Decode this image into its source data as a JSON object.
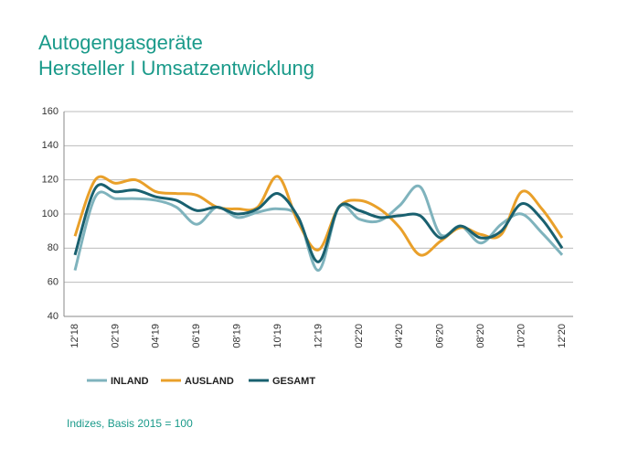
{
  "chart_data": {
    "type": "line",
    "title": "Autogengasgeräte",
    "subtitle": "Hersteller I Umsatzentwicklung",
    "note": "Indizes, Basis 2015 = 100",
    "categories": [
      "12'18",
      null,
      "02'19",
      null,
      "04'19",
      null,
      "06'19",
      null,
      "08'19",
      null,
      "10'19",
      null,
      "12'19",
      null,
      "02'20",
      null,
      "04'20",
      null,
      "06'20",
      null,
      "08'20",
      null,
      "10'20",
      null,
      "12'20"
    ],
    "series": [
      {
        "name": "INLAND",
        "color": "#7fb3bd",
        "values": [
          67,
          110,
          109,
          109,
          108,
          104,
          94,
          104,
          98,
          101,
          103,
          98,
          67,
          104,
          97,
          96,
          105,
          116,
          88,
          93,
          83,
          94,
          100,
          89,
          76
        ]
      },
      {
        "name": "AUSLAND",
        "color": "#e9a02a",
        "values": [
          87,
          120,
          118,
          120,
          113,
          112,
          111,
          104,
          103,
          104,
          122,
          95,
          79,
          104,
          108,
          103,
          92,
          76,
          84,
          92,
          88,
          88,
          113,
          103,
          86
        ]
      },
      {
        "name": "GESAMT",
        "color": "#19606f",
        "values": [
          76,
          115,
          113,
          114,
          110,
          108,
          102,
          104,
          100,
          103,
          112,
          98,
          72,
          104,
          102,
          98,
          99,
          99,
          86,
          93,
          86,
          90,
          106,
          97,
          80
        ]
      }
    ],
    "ylim": [
      40,
      160
    ],
    "yticks": [
      40,
      60,
      80,
      100,
      120,
      140,
      160
    ],
    "grid": true
  }
}
